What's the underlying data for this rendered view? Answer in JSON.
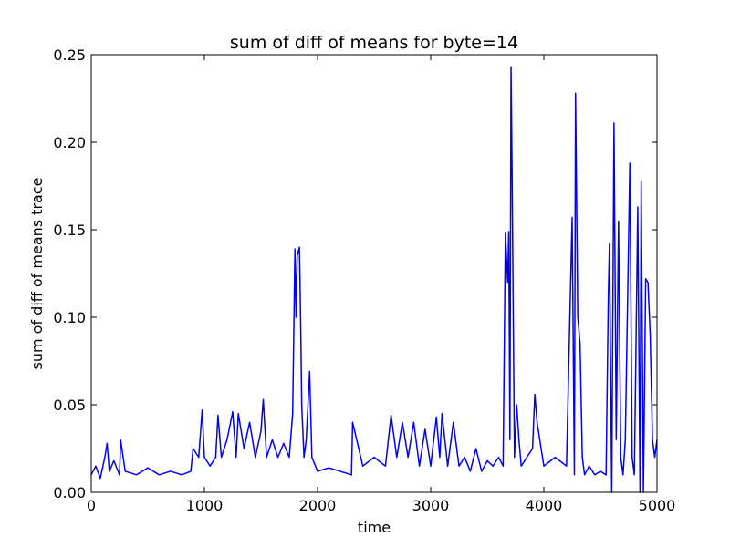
{
  "chart_data": {
    "type": "line",
    "title": "sum of diff of means for byte=14",
    "xlabel": "time",
    "ylabel": "sum of diff of means trace",
    "xlim": [
      0,
      5000
    ],
    "ylim": [
      0,
      0.25
    ],
    "x_ticks": [
      0,
      1000,
      2000,
      3000,
      4000,
      5000
    ],
    "x_tick_labels": [
      "0",
      "1000",
      "2000",
      "3000",
      "4000",
      "5000"
    ],
    "y_ticks": [
      0.0,
      0.05,
      0.1,
      0.15,
      0.2,
      0.25
    ],
    "y_tick_labels": [
      "0.00",
      "0.05",
      "0.10",
      "0.15",
      "0.20",
      "0.25"
    ],
    "grid": false,
    "legend": "none",
    "series": [
      {
        "color": "#0000ff",
        "x": [
          0,
          40,
          80,
          120,
          140,
          160,
          200,
          250,
          260,
          300,
          400,
          500,
          600,
          700,
          800,
          880,
          900,
          950,
          980,
          1000,
          1050,
          1100,
          1120,
          1150,
          1200,
          1250,
          1280,
          1300,
          1350,
          1400,
          1450,
          1500,
          1520,
          1550,
          1600,
          1650,
          1700,
          1750,
          1780,
          1800,
          1810,
          1820,
          1840,
          1850,
          1860,
          1880,
          1900,
          1930,
          1950,
          2000,
          2100,
          2200,
          2300,
          2310,
          2400,
          2500,
          2600,
          2650,
          2700,
          2750,
          2800,
          2850,
          2900,
          2950,
          3000,
          3050,
          3080,
          3100,
          3150,
          3200,
          3250,
          3300,
          3350,
          3400,
          3450,
          3500,
          3550,
          3600,
          3640,
          3660,
          3680,
          3690,
          3700,
          3710,
          3720,
          3740,
          3760,
          3780,
          3800,
          3850,
          3900,
          3920,
          3940,
          4000,
          4100,
          4200,
          4250,
          4270,
          4280,
          4300,
          4320,
          4340,
          4360,
          4400,
          4450,
          4500,
          4550,
          4570,
          4580,
          4600,
          4620,
          4640,
          4660,
          4680,
          4700,
          4720,
          4760,
          4780,
          4800,
          4830,
          4850,
          4860,
          4880,
          4900,
          4920,
          4940,
          4960,
          4980,
          5000
        ],
        "y": [
          0.01,
          0.015,
          0.008,
          0.02,
          0.028,
          0.012,
          0.018,
          0.01,
          0.03,
          0.012,
          0.01,
          0.014,
          0.01,
          0.012,
          0.01,
          0.012,
          0.025,
          0.02,
          0.047,
          0.02,
          0.015,
          0.02,
          0.044,
          0.02,
          0.03,
          0.046,
          0.02,
          0.045,
          0.025,
          0.04,
          0.02,
          0.035,
          0.053,
          0.02,
          0.03,
          0.02,
          0.028,
          0.02,
          0.045,
          0.139,
          0.1,
          0.135,
          0.14,
          0.1,
          0.05,
          0.02,
          0.03,
          0.069,
          0.02,
          0.012,
          0.014,
          0.012,
          0.01,
          0.04,
          0.015,
          0.02,
          0.015,
          0.044,
          0.02,
          0.04,
          0.02,
          0.04,
          0.015,
          0.036,
          0.015,
          0.043,
          0.02,
          0.045,
          0.015,
          0.04,
          0.015,
          0.02,
          0.012,
          0.025,
          0.012,
          0.018,
          0.015,
          0.02,
          0.015,
          0.148,
          0.12,
          0.149,
          0.03,
          0.243,
          0.176,
          0.02,
          0.05,
          0.03,
          0.015,
          0.02,
          0.025,
          0.056,
          0.04,
          0.015,
          0.02,
          0.015,
          0.157,
          0.01,
          0.228,
          0.1,
          0.085,
          0.02,
          0.01,
          0.015,
          0.01,
          0.012,
          0.01,
          0.113,
          0.142,
          0.0,
          0.211,
          0.03,
          0.155,
          0.02,
          0.01,
          0.03,
          0.188,
          0.02,
          0.01,
          0.163,
          0.0,
          0.178,
          0.0,
          0.122,
          0.12,
          0.09,
          0.03,
          0.02,
          0.03
        ]
      }
    ]
  }
}
